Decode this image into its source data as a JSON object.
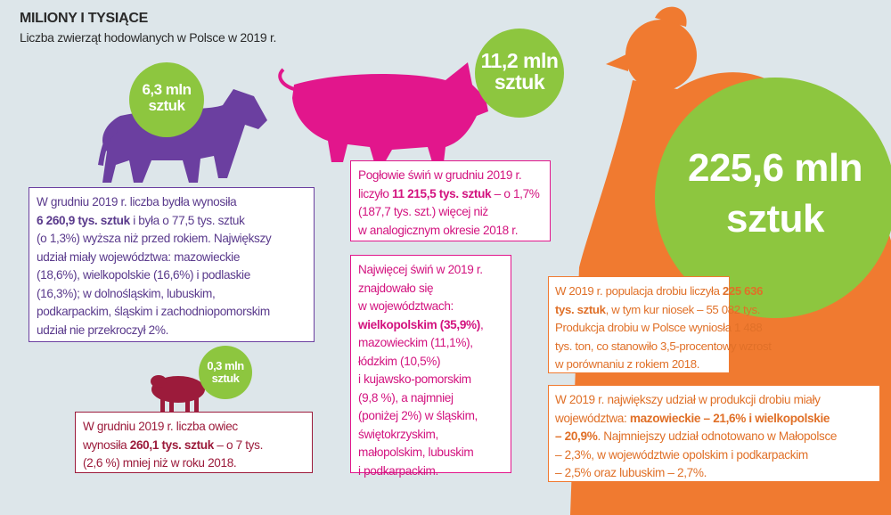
{
  "header": {
    "title": "MILIONY I TYSIĄCE",
    "subtitle": "Liczba zwierząt hodowlanych w Polsce w 2019 r."
  },
  "colors": {
    "background": "#dde6ea",
    "cow": "#6b3fa0",
    "pig": "#e2168c",
    "sheep": "#9c1b3b",
    "poultry": "#f07a30",
    "badge": "#8dc63f"
  },
  "badges": {
    "cow": {
      "value": "6,3 mln",
      "unit": "sztuk"
    },
    "pig": {
      "value": "11,2 mln",
      "unit": "sztuk"
    },
    "sheep": {
      "value": "0,3 mln",
      "unit": "sztuk"
    },
    "poultry": {
      "value": "225,6 mln",
      "unit": "sztuk"
    }
  },
  "boxes": {
    "cow": [
      {
        "pre": "W grudniu 2019 r. liczba bydła wynosiła",
        "b": "",
        "post": ""
      },
      {
        "pre": "",
        "b": "6 260,9 tys. sztuk",
        "post": " i była o 77,5 tys. sztuk"
      },
      {
        "pre": "(o 1,3%) wyższa niż przed rokiem. Największy",
        "b": "",
        "post": ""
      },
      {
        "pre": "udział miały województwa: mazowieckie",
        "b": "",
        "post": ""
      },
      {
        "pre": "(18,6%), wielkopolskie (16,6%) i podlaskie",
        "b": "",
        "post": ""
      },
      {
        "pre": "(16,3%); w dolnośląskim, lubuskim,",
        "b": "",
        "post": ""
      },
      {
        "pre": "podkarpackim, śląskim i zachodniopomorskim",
        "b": "",
        "post": ""
      },
      {
        "pre": "udział nie przekroczył 2%.",
        "b": "",
        "post": ""
      }
    ],
    "pig1": [
      {
        "pre": "Pogłowie świń w grudniu 2019 r.",
        "b": "",
        "post": ""
      },
      {
        "pre": "liczyło ",
        "b": "11 215,5 tys. sztuk",
        "post": " – o 1,7%"
      },
      {
        "pre": "(187,7 tys. szt.) więcej niż",
        "b": "",
        "post": ""
      },
      {
        "pre": "w analogicznym okresie 2018 r.",
        "b": "",
        "post": ""
      }
    ],
    "pig2": [
      {
        "pre": "Najwięcej świń w 2019 r.",
        "b": "",
        "post": ""
      },
      {
        "pre": "znajdowało się",
        "b": "",
        "post": ""
      },
      {
        "pre": "w województwach:",
        "b": "",
        "post": ""
      },
      {
        "pre": "",
        "b": "wielkopolskim (35,9%)",
        "post": ","
      },
      {
        "pre": "mazowieckim (11,1%),",
        "b": "",
        "post": ""
      },
      {
        "pre": "łódzkim (10,5%)",
        "b": "",
        "post": ""
      },
      {
        "pre": "i kujawsko-pomorskim",
        "b": "",
        "post": ""
      },
      {
        "pre": "(9,8 %), a najmniej",
        "b": "",
        "post": ""
      },
      {
        "pre": "(poniżej 2%) w śląskim,",
        "b": "",
        "post": ""
      },
      {
        "pre": "świętokrzyskim,",
        "b": "",
        "post": ""
      },
      {
        "pre": "małopolskim, lubuskim",
        "b": "",
        "post": ""
      },
      {
        "pre": "i podkarpackim.",
        "b": "",
        "post": ""
      }
    ],
    "sheep": [
      {
        "pre": "W grudniu 2019 r. liczba owiec",
        "b": "",
        "post": ""
      },
      {
        "pre": "wynosiła ",
        "b": "260,1 tys. sztuk",
        "post": " – o 7 tys."
      },
      {
        "pre": "(2,6 %) mniej niż w roku 2018.",
        "b": "",
        "post": ""
      }
    ],
    "poultry1": [
      {
        "pre": "W 2019 r. populacja drobiu liczyła ",
        "b": "225 636",
        "post": ""
      },
      {
        "pre": "",
        "b": "tys. sztuk",
        "post": ", w tym kur niosek – 55 082 tys."
      },
      {
        "pre": "Produkcja drobiu w Polsce wyniosła 1 488",
        "b": "",
        "post": ""
      },
      {
        "pre": "tys. ton, co stanowiło 3,5-procentowy wzrost",
        "b": "",
        "post": ""
      },
      {
        "pre": "w porównaniu z rokiem 2018.",
        "b": "",
        "post": ""
      }
    ],
    "poultry2": [
      {
        "pre": "W 2019 r. największy udział w produkcji drobiu miały",
        "b": "",
        "post": ""
      },
      {
        "pre": "województwa: ",
        "b": "mazowieckie – 21,6% i wielkopolskie",
        "post": ""
      },
      {
        "pre": "",
        "b": "– 20,9%",
        "post": ". Najmniejszy udział odnotowano w Małopolsce"
      },
      {
        "pre": "– 2,3%, w województwie opolskim i podkarpackim",
        "b": "",
        "post": ""
      },
      {
        "pre": "– 2,5% oraz lubuskim – 2,7%.",
        "b": "",
        "post": ""
      }
    ]
  }
}
